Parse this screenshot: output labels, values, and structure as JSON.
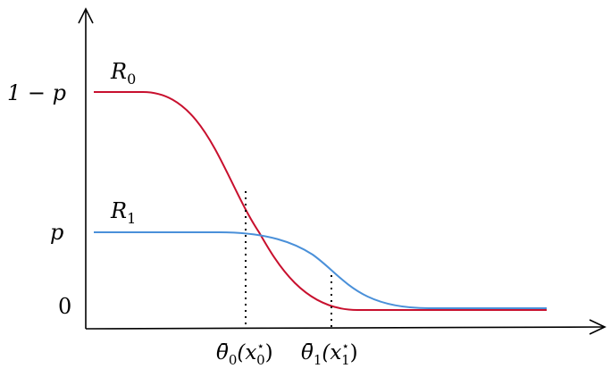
{
  "labels": {
    "y_one_minus_p": "1 − p",
    "y_p": "p",
    "y_zero": "0",
    "curve_r0_base": "R",
    "curve_r0_sub": "0",
    "curve_r1_base": "R",
    "curve_r1_sub": "1",
    "x_theta0_base": "θ̄",
    "x_theta0_sub": "0",
    "x_theta0_arg_open": "(x",
    "x_theta0_arg_sup": "⋆",
    "x_theta0_arg_sub": "0",
    "x_theta0_arg_close": ")",
    "x_theta1_base": "θ̄",
    "x_theta1_sub": "1",
    "x_theta1_arg_open": "(x",
    "x_theta1_arg_sup": "⋆",
    "x_theta1_arg_sub": "1",
    "x_theta1_arg_close": ")"
  },
  "colors": {
    "r0": "#c8102e",
    "r1": "#4a90d9",
    "axis": "#000000"
  }
}
